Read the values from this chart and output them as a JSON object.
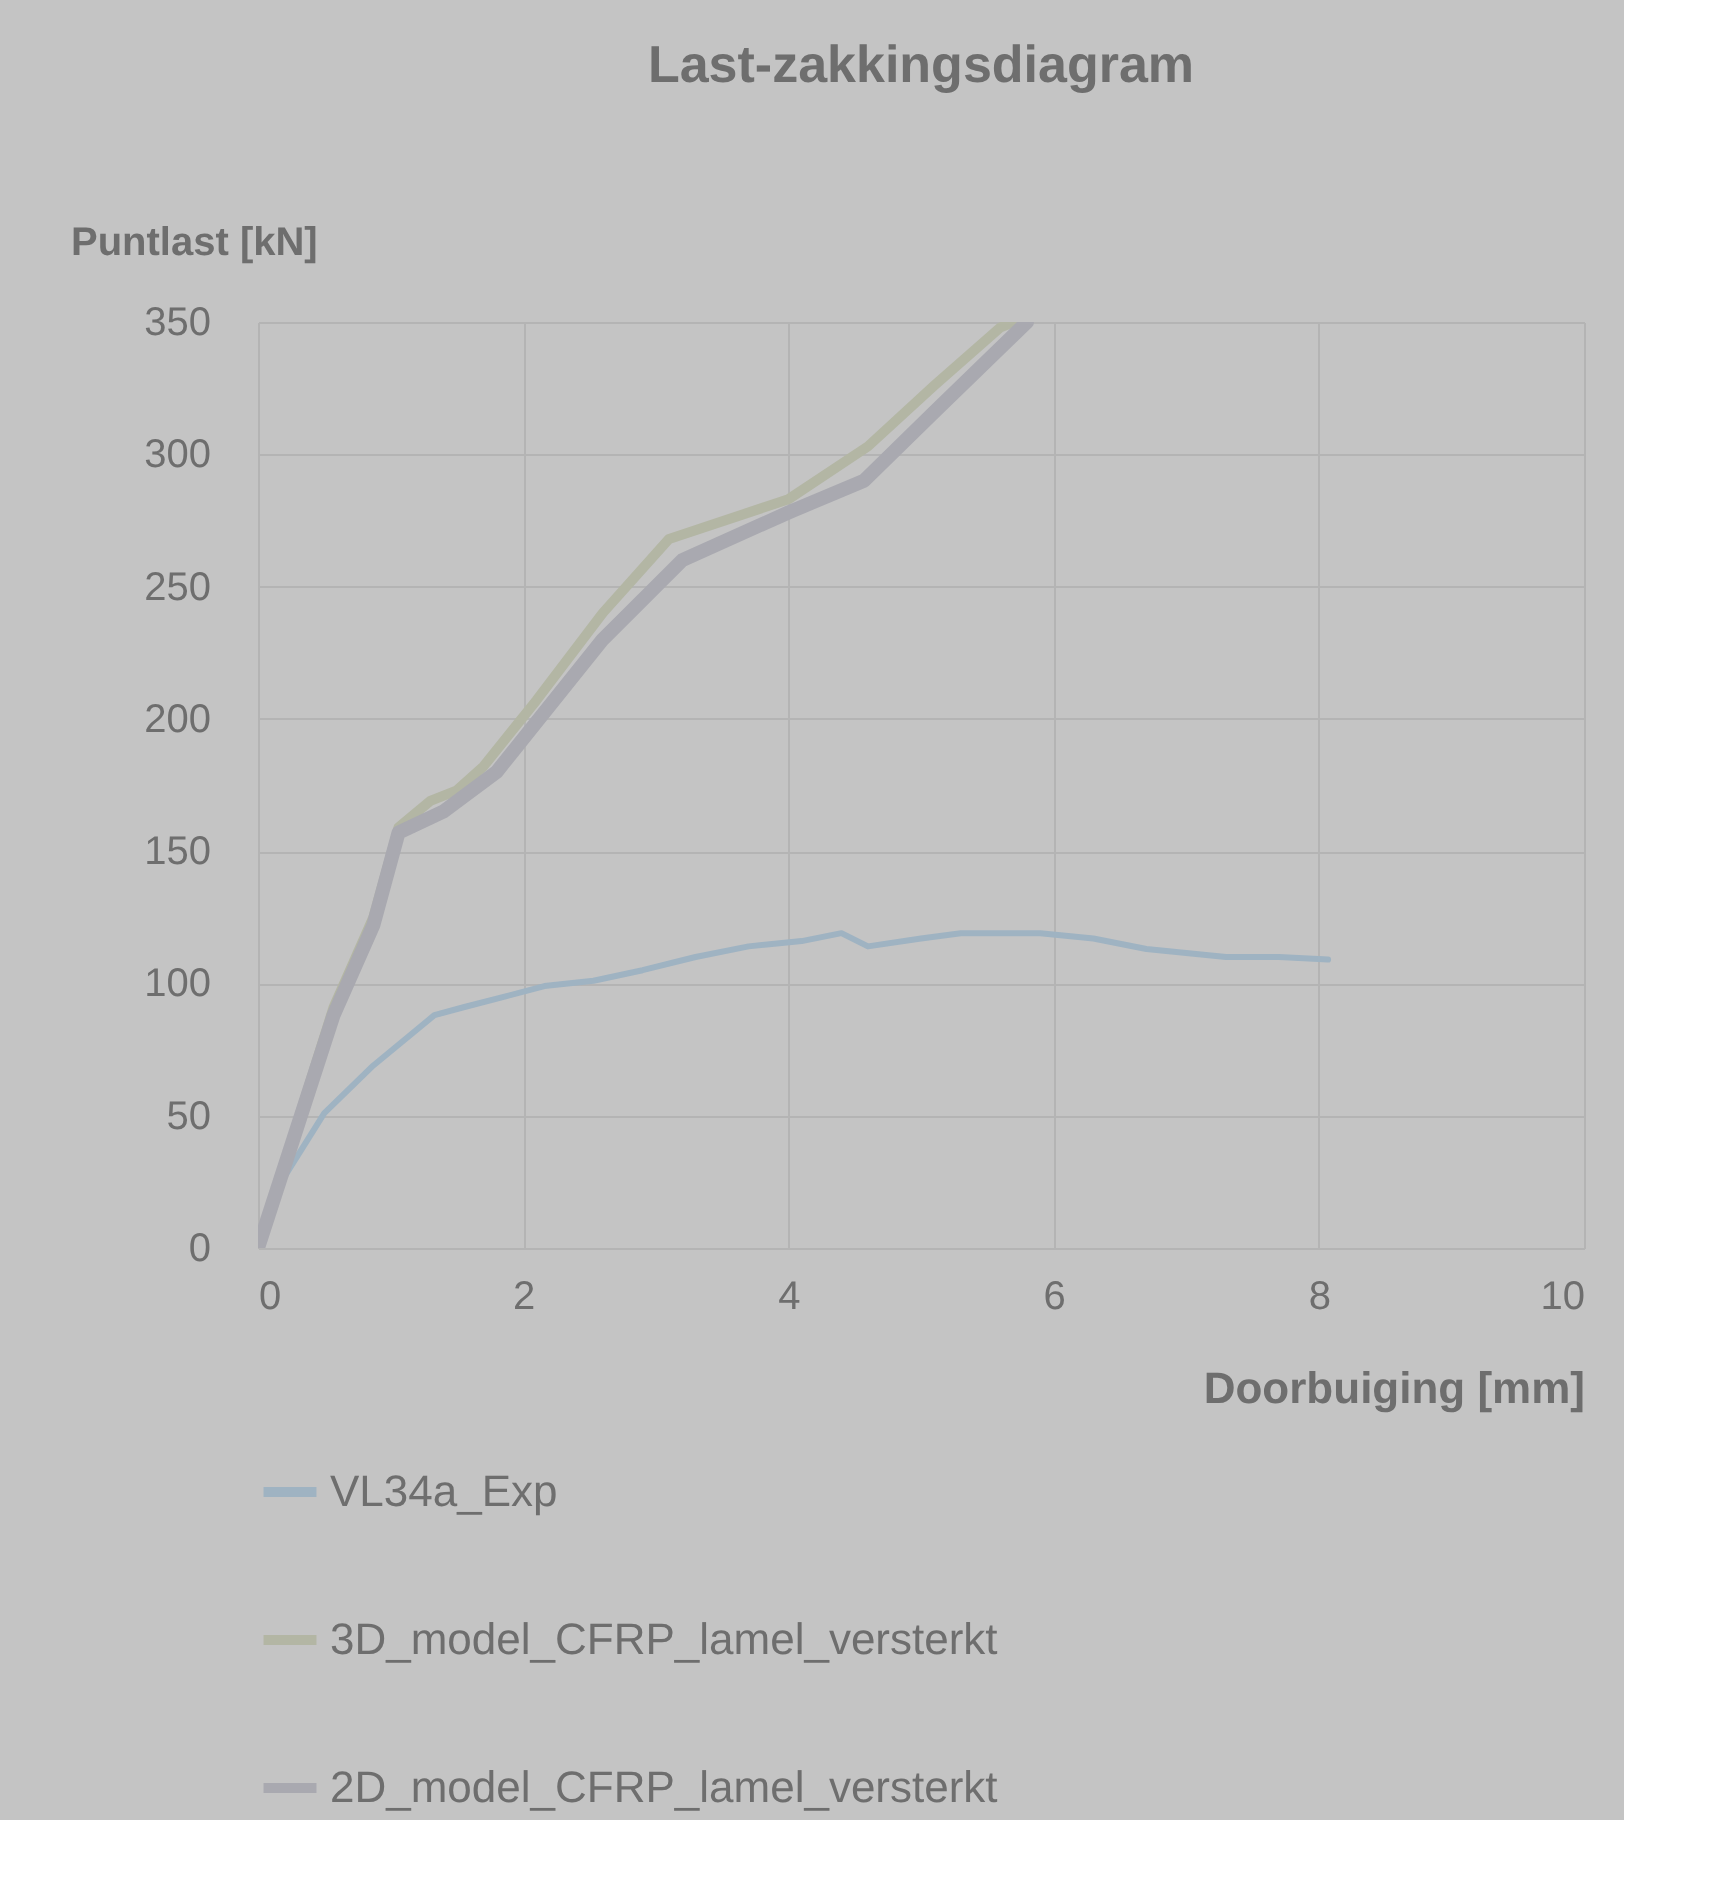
{
  "chart_data": {
    "type": "line",
    "title": "Last-zakkingsdiagram",
    "xlabel": "Doorbuiging [mm]",
    "ylabel": "Puntlast [kN]",
    "xlim": [
      0,
      10
    ],
    "xticks": [
      0,
      2,
      4,
      6,
      8,
      10
    ],
    "ylim": [
      0,
      350
    ],
    "yticks": [
      0,
      50,
      100,
      150,
      200,
      250,
      300,
      350
    ],
    "grid": true,
    "legend": "bottom",
    "marker": "none",
    "line_style": "solid",
    "series": [
      {
        "name": "VL34a_Exp",
        "color": "#9fb3c2",
        "x": [
          0,
          0.2,
          0.5,
          0.87,
          1.33,
          1.55,
          1.86,
          2.16,
          2.53,
          2.9,
          3.3,
          3.7,
          4.1,
          4.4,
          4.6,
          5.0,
          5.3,
          5.9,
          6.3,
          6.7,
          7.3,
          7.7,
          8.07
        ],
        "values": [
          0,
          27,
          51,
          69,
          88,
          91,
          95,
          99,
          101,
          105,
          110,
          114,
          116,
          119,
          114,
          117,
          119,
          119,
          117,
          113,
          110,
          110,
          109
        ]
      },
      {
        "name": "3D_model_CFRP_lamel_versterkt",
        "color": "#b3b6a4",
        "x": [
          0,
          0.57,
          0.87,
          1.06,
          1.3,
          1.5,
          1.7,
          2.1,
          2.6,
          3.1,
          4.0,
          4.6,
          5.1,
          5.6,
          5.7
        ],
        "values": [
          0,
          91,
          125,
          159,
          169,
          173,
          182,
          207,
          240,
          268,
          283,
          303,
          326,
          348,
          350
        ]
      },
      {
        "name": "2D_model_CFRP_lamel_versterkt",
        "color": "#a9a9b0",
        "x": [
          0,
          0.57,
          0.87,
          1.06,
          1.4,
          1.8,
          2.6,
          3.2,
          4.0,
          4.57,
          5.1,
          5.8
        ],
        "values": [
          0,
          88,
          122,
          157,
          165,
          180,
          230,
          260,
          278,
          290,
          316,
          350
        ]
      }
    ]
  }
}
